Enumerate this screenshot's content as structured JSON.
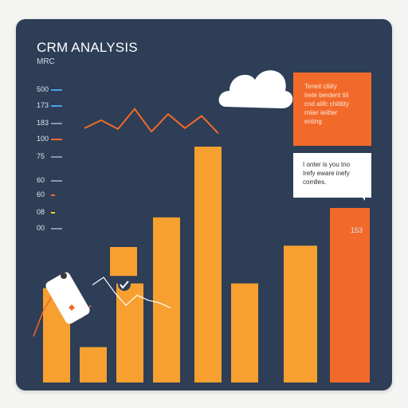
{
  "title": "CRM ANALYSIS",
  "subtitle": "MRC",
  "chart_data": {
    "type": "bar",
    "y_ticks": [
      {
        "label": "500",
        "color": "#4aa3e8"
      },
      {
        "label": "173",
        "color": "#4aa3e8"
      },
      {
        "label": "183",
        "color": "#8a96a8"
      },
      {
        "label": "100",
        "color": "#f26a2a"
      },
      {
        "label": "75",
        "color": "#8a96a8"
      },
      {
        "label": "60",
        "color": "#8a96a8"
      },
      {
        "label": "60",
        "color": "#f26a2a"
      },
      {
        "label": "08",
        "color": "#f5d12a"
      },
      {
        "label": "00",
        "color": "#8a96a8"
      }
    ],
    "bars": [
      {
        "value": 40,
        "color": "#f7a030"
      },
      {
        "value": 15,
        "color": "#f7a030"
      },
      {
        "value": 42,
        "color": "#f7a030"
      },
      {
        "value": 70,
        "color": "#f7a030"
      },
      {
        "value": 100,
        "color": "#f7a030"
      },
      {
        "value": 42,
        "color": "#f7a030"
      },
      {
        "value": 58,
        "color": "#f7a030"
      },
      {
        "value": 74,
        "color": "#f26a2a"
      }
    ],
    "overlay_bar": {
      "value": 36,
      "color": "#f7a030"
    },
    "bar_label": "153",
    "line_series": [
      {
        "values": [
          12,
          21,
          11,
          34,
          8,
          28,
          12,
          26,
          6
        ],
        "color": "#f26a2a"
      },
      {
        "values": [
          6,
          30,
          46,
          56,
          34,
          24,
          36
        ],
        "color": "#f26a2a"
      }
    ],
    "white_line": [
      54,
      60,
      48,
      38,
      46,
      42,
      40,
      36
    ],
    "ylim": [
      0,
      100
    ],
    "legend_position": "none",
    "grid": false
  },
  "notes": {
    "orange": "Teneit cliiity\nIrete berdent tiil\ncnd aiifc chiittity\nrniier ieiitter\nenting",
    "white": "I onter is you tno\nIrefy eware inefy\ncomlles."
  },
  "colors": {
    "background": "#2d3e56",
    "bar": "#f7a030",
    "accent": "#f26a2a"
  }
}
